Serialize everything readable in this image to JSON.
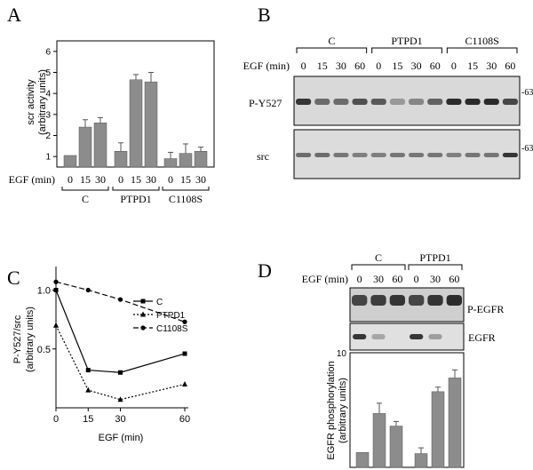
{
  "panel_letters": {
    "a": "A",
    "b": "B",
    "c": "C",
    "d": "D"
  },
  "colors": {
    "bar": "#8c8c8c",
    "blot_bg": "#d9d9d9",
    "band": "#222222",
    "line": "#000000"
  },
  "chart_data": [
    {
      "panel": "A",
      "type": "bar",
      "ylabel_line1": "scr activity",
      "ylabel_line2": "(arbitrary units)",
      "xlabel": "EGF (min)",
      "ylim": [
        0.5,
        6.5
      ],
      "yticks": [
        "1",
        "2",
        "3",
        "4",
        "5",
        "6"
      ],
      "groups": [
        "C",
        "PTPD1",
        "C1108S"
      ],
      "categories": [
        "0",
        "15",
        "30",
        "0",
        "15",
        "30",
        "0",
        "15",
        "30"
      ],
      "values": [
        1.05,
        2.4,
        2.6,
        1.25,
        4.65,
        4.55,
        0.9,
        1.15,
        1.25
      ],
      "errors": [
        0.0,
        0.35,
        0.25,
        0.4,
        0.25,
        0.45,
        0.3,
        0.45,
        0.2
      ]
    },
    {
      "panel": "C",
      "type": "line",
      "ylabel_line1": "P-Y527/src",
      "ylabel_line2": "(arbitrary units)",
      "xlabel": "EGF (min)",
      "xlim": [
        0,
        60
      ],
      "ylim": [
        0.0,
        1.2
      ],
      "xticks": [
        "0",
        "15",
        "30",
        "60"
      ],
      "yticks": [
        "0.5",
        "1.0"
      ],
      "x": [
        0,
        15,
        30,
        60
      ],
      "legend_position": "top-right",
      "series": [
        {
          "name": "C",
          "values": [
            1.0,
            0.32,
            0.3,
            0.46
          ],
          "dash": "solid",
          "marker": "square"
        },
        {
          "name": "PTPD1",
          "values": [
            0.7,
            0.15,
            0.07,
            0.2
          ],
          "dash": "dotted",
          "marker": "triangle"
        },
        {
          "name": "C1108S",
          "values": [
            1.07,
            1.0,
            0.92,
            0.73
          ],
          "dash": "dashed",
          "marker": "circle"
        }
      ]
    },
    {
      "panel": "D",
      "type": "bar",
      "ylabel_line1": "EGFR phosphorylation",
      "ylabel_line2": "(arbitrary units)",
      "ylim": [
        0,
        10
      ],
      "yticks": [
        "10"
      ],
      "categories": [
        "C 0",
        "C 30",
        "C 60",
        "PTPD1 0",
        "PTPD1 30",
        "PTPD1 60"
      ],
      "values": [
        1.3,
        4.7,
        3.6,
        1.2,
        6.6,
        7.8
      ],
      "errors": [
        0.0,
        0.9,
        0.4,
        0.5,
        0.4,
        0.7
      ]
    }
  ],
  "blot_b": {
    "groups": [
      "C",
      "PTPD1",
      "C1108S"
    ],
    "egf_label": "EGF (min)",
    "lane_labels": [
      "0",
      "15",
      "30",
      "60",
      "0",
      "15",
      "30",
      "60",
      "0",
      "15",
      "30",
      "60"
    ],
    "row_labels": [
      "P-Y527",
      "src"
    ],
    "marker": "-63",
    "band_intensity_top": [
      0.9,
      0.6,
      0.6,
      0.75,
      0.7,
      0.35,
      0.45,
      0.65,
      0.95,
      0.95,
      0.95,
      0.8
    ],
    "band_intensity_bottom": [
      0.6,
      0.6,
      0.55,
      0.5,
      0.5,
      0.55,
      0.55,
      0.55,
      0.5,
      0.55,
      0.55,
      0.9
    ]
  },
  "blot_d": {
    "groups": [
      "C",
      "PTPD1"
    ],
    "egf_label": "EGF (min)",
    "lane_labels": [
      "0",
      "30",
      "60",
      "0",
      "30",
      "60"
    ],
    "row_labels": [
      "P-EGFR",
      "EGFR"
    ],
    "band_intensity_top": [
      0.8,
      0.85,
      0.9,
      0.8,
      0.9,
      0.95
    ],
    "band_intensity_bottom": [
      0.9,
      0.3,
      0.0,
      0.9,
      0.35,
      0.0
    ]
  }
}
